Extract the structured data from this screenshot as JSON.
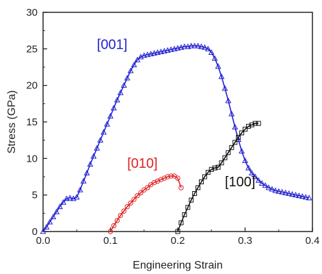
{
  "chart_data": {
    "type": "line",
    "title": "",
    "xlabel": "Engineering Strain",
    "ylabel": "Stress (GPa)",
    "xlim": [
      0.0,
      0.4
    ],
    "ylim": [
      0,
      30
    ],
    "xticks": [
      "0.0",
      "0.1",
      "0.2",
      "0.3",
      "0.4"
    ],
    "yticks": [
      "0",
      "5",
      "10",
      "15",
      "20",
      "25",
      "30"
    ],
    "grid": false,
    "legend": "none",
    "series": [
      {
        "name": "[001]",
        "color": "#1f1fd0",
        "marker": "triangle",
        "x": [
          0.0,
          0.005,
          0.01,
          0.015,
          0.02,
          0.025,
          0.03,
          0.035,
          0.04,
          0.045,
          0.05,
          0.055,
          0.06,
          0.065,
          0.07,
          0.075,
          0.08,
          0.085,
          0.09,
          0.095,
          0.1,
          0.105,
          0.11,
          0.115,
          0.12,
          0.125,
          0.13,
          0.135,
          0.14,
          0.145,
          0.15,
          0.155,
          0.16,
          0.165,
          0.17,
          0.175,
          0.18,
          0.185,
          0.19,
          0.195,
          0.2,
          0.205,
          0.21,
          0.215,
          0.22,
          0.225,
          0.23,
          0.235,
          0.24,
          0.245,
          0.25,
          0.255,
          0.26,
          0.265,
          0.27,
          0.275,
          0.28,
          0.285,
          0.29,
          0.295,
          0.3,
          0.305,
          0.31,
          0.315,
          0.32,
          0.325,
          0.33,
          0.335,
          0.34,
          0.345,
          0.35,
          0.355,
          0.36,
          0.365,
          0.37,
          0.375,
          0.38,
          0.385,
          0.39,
          0.395
        ],
        "y": [
          0.0,
          0.6,
          1.3,
          2.0,
          2.7,
          3.4,
          4.0,
          4.5,
          4.6,
          4.5,
          4.7,
          5.7,
          6.9,
          8.0,
          9.2,
          10.3,
          11.4,
          12.5,
          13.6,
          14.7,
          15.8,
          16.9,
          18.0,
          19.0,
          20.0,
          21.0,
          22.0,
          22.8,
          23.5,
          23.9,
          24.1,
          24.2,
          24.3,
          24.4,
          24.5,
          24.6,
          24.7,
          24.8,
          24.9,
          25.0,
          25.1,
          25.2,
          25.3,
          25.3,
          25.4,
          25.4,
          25.4,
          25.3,
          25.2,
          25.0,
          24.5,
          23.7,
          22.6,
          21.2,
          19.6,
          17.9,
          16.1,
          14.3,
          12.6,
          11.0,
          9.7,
          8.7,
          8.0,
          7.5,
          7.0,
          6.6,
          6.3,
          6.0,
          5.8,
          5.6,
          5.5,
          5.4,
          5.3,
          5.2,
          5.1,
          5.0,
          4.9,
          4.8,
          4.7,
          4.6
        ]
      },
      {
        "name": "[010]",
        "color": "#e02020",
        "marker": "circle",
        "x": [
          0.1,
          0.105,
          0.11,
          0.115,
          0.12,
          0.125,
          0.13,
          0.135,
          0.14,
          0.145,
          0.15,
          0.155,
          0.16,
          0.165,
          0.17,
          0.175,
          0.18,
          0.185,
          0.19,
          0.195,
          0.2,
          0.205
        ],
        "y": [
          0.0,
          0.8,
          1.5,
          2.2,
          2.8,
          3.4,
          3.9,
          4.4,
          4.9,
          5.3,
          5.7,
          6.0,
          6.4,
          6.7,
          6.9,
          7.1,
          7.3,
          7.5,
          7.6,
          7.6,
          7.3,
          6.0
        ]
      },
      {
        "name": "[100]",
        "color": "#111111",
        "marker": "square",
        "x": [
          0.2,
          0.205,
          0.21,
          0.215,
          0.22,
          0.225,
          0.23,
          0.235,
          0.24,
          0.245,
          0.25,
          0.255,
          0.26,
          0.265,
          0.27,
          0.275,
          0.28,
          0.285,
          0.29,
          0.295,
          0.3,
          0.305,
          0.31,
          0.315,
          0.32
        ],
        "y": [
          0.0,
          1.2,
          2.3,
          3.3,
          4.3,
          5.2,
          6.0,
          6.8,
          7.5,
          8.1,
          8.5,
          8.7,
          8.8,
          9.4,
          10.1,
          10.8,
          11.5,
          12.2,
          12.9,
          13.5,
          14.0,
          14.4,
          14.6,
          14.8,
          14.8
        ]
      }
    ],
    "annotations": [
      {
        "text": "[001]",
        "x": 0.08,
        "y": 25.0,
        "color": "#1f1fd0"
      },
      {
        "text": "[010]",
        "x": 0.125,
        "y": 8.7,
        "color": "#e02020"
      },
      {
        "text": "[100]",
        "x": 0.27,
        "y": 6.2,
        "color": "#111111"
      }
    ]
  }
}
